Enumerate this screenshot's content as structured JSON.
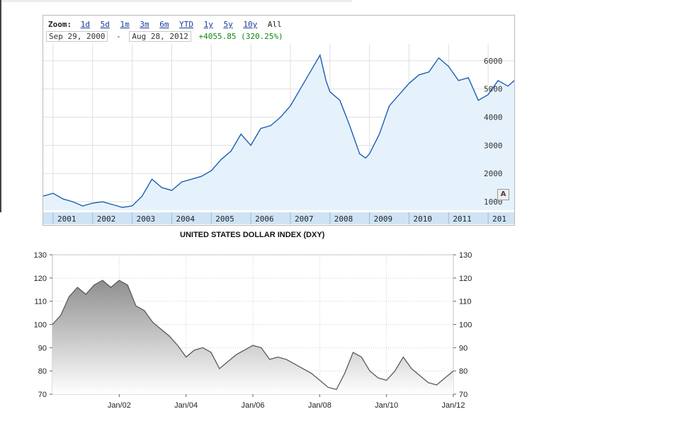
{
  "top": {
    "zoom_label": "Zoom:",
    "zoom_options": [
      "1d",
      "5d",
      "1m",
      "3m",
      "6m",
      "YTD",
      "1y",
      "5y",
      "10y"
    ],
    "zoom_all": "All",
    "range_start": "Sep 29, 2000",
    "range_sep": "-",
    "range_end": "Aug 28, 2012",
    "change": "+4055.85 (320.25%)",
    "a_button": "A"
  },
  "bottom": {
    "title": "UNITED STATES DOLLAR INDEX (DXY)"
  },
  "chart_data": [
    {
      "type": "area",
      "title": "",
      "xlabel": "",
      "ylabel": "",
      "x_tick_labels": [
        "2001",
        "2002",
        "2003",
        "2004",
        "2005",
        "2006",
        "2007",
        "2008",
        "2009",
        "2010",
        "2011",
        "201"
      ],
      "y_tick_labels": [
        "1000",
        "2000",
        "3000",
        "4000",
        "5000",
        "6000"
      ],
      "ylim": [
        700,
        6600
      ],
      "xlim": [
        2000.75,
        2012.66
      ],
      "grid": true,
      "colors": {
        "line": "#1c5fb5",
        "fill": "#e6f2fb",
        "axis_band": "#cfe3f5"
      },
      "series": [
        {
          "x": [
            2000.75,
            2001.0,
            2001.25,
            2001.5,
            2001.75,
            2002.0,
            2002.25,
            2002.5,
            2002.75,
            2003.0,
            2003.25,
            2003.5,
            2003.75,
            2004.0,
            2004.25,
            2004.5,
            2004.75,
            2005.0,
            2005.25,
            2005.5,
            2005.75,
            2006.0,
            2006.25,
            2006.5,
            2006.75,
            2007.0,
            2007.25,
            2007.5,
            2007.75,
            2007.9,
            2008.0,
            2008.25,
            2008.5,
            2008.75,
            2008.9,
            2009.0,
            2009.25,
            2009.5,
            2009.75,
            2010.0,
            2010.25,
            2010.5,
            2010.75,
            2011.0,
            2011.25,
            2011.5,
            2011.75,
            2012.0,
            2012.25,
            2012.5,
            2012.66
          ],
          "values": [
            1200,
            1300,
            1100,
            1000,
            850,
            950,
            1000,
            900,
            800,
            850,
            1200,
            1800,
            1500,
            1400,
            1700,
            1800,
            1900,
            2100,
            2500,
            2800,
            3400,
            3000,
            3600,
            3700,
            4000,
            4400,
            5000,
            5600,
            6200,
            5300,
            4900,
            4600,
            3700,
            2700,
            2550,
            2700,
            3400,
            4400,
            4800,
            5200,
            5500,
            5600,
            6100,
            5800,
            5300,
            5400,
            4600,
            4800,
            5300,
            5100,
            5300
          ]
        }
      ]
    },
    {
      "type": "area",
      "title": "UNITED STATES DOLLAR INDEX (DXY)",
      "xlabel": "",
      "ylabel": "",
      "x_tick_labels": [
        "Jan/02",
        "Jan/04",
        "Jan/06",
        "Jan/08",
        "Jan/10",
        "Jan/12"
      ],
      "y_tick_labels": [
        "70",
        "80",
        "90",
        "100",
        "110",
        "120",
        "130"
      ],
      "ylim": [
        70,
        130
      ],
      "xlim": [
        2000.0,
        2012.0
      ],
      "grid": true,
      "colors": {
        "line": "#5a5a5a",
        "fill_top": "#8f8f8f",
        "fill_bottom": "#ffffff"
      },
      "series": [
        {
          "x": [
            2000.0,
            2000.25,
            2000.5,
            2000.75,
            2001.0,
            2001.25,
            2001.5,
            2001.75,
            2002.0,
            2002.25,
            2002.5,
            2002.75,
            2003.0,
            2003.25,
            2003.5,
            2003.75,
            2004.0,
            2004.25,
            2004.5,
            2004.75,
            2005.0,
            2005.25,
            2005.5,
            2005.75,
            2006.0,
            2006.25,
            2006.5,
            2006.75,
            2007.0,
            2007.25,
            2007.5,
            2007.75,
            2008.0,
            2008.25,
            2008.5,
            2008.75,
            2009.0,
            2009.25,
            2009.5,
            2009.75,
            2010.0,
            2010.25,
            2010.5,
            2010.75,
            2011.0,
            2011.25,
            2011.5,
            2011.75,
            2012.0
          ],
          "values": [
            100,
            104,
            112,
            116,
            113,
            117,
            119,
            116,
            119,
            117,
            108,
            106,
            101,
            98,
            95,
            91,
            86,
            89,
            90,
            88,
            81,
            84,
            87,
            89,
            91,
            90,
            85,
            86,
            85,
            83,
            81,
            79,
            76,
            73,
            72,
            79,
            88,
            86,
            80,
            77,
            76,
            80,
            86,
            81,
            78,
            75,
            74,
            77,
            80
          ]
        }
      ]
    }
  ]
}
